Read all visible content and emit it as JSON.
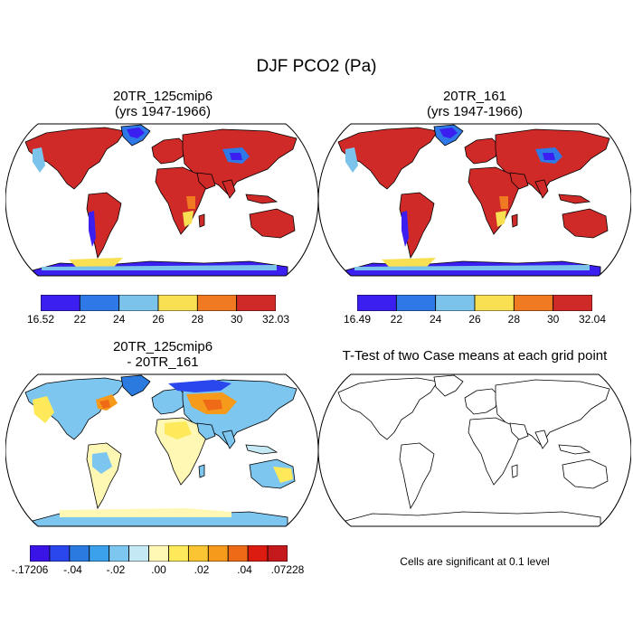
{
  "title": "DJF PCO2 (Pa)",
  "panels": [
    {
      "id": "case1",
      "title_line1": "20TR_125cmip6",
      "title_line2": "(yrs 1947-1966)",
      "colorbar": {
        "colors": [
          "#3b1ff0",
          "#2e78e8",
          "#7cc3ec",
          "#f8e052",
          "#f07a22",
          "#d02a28"
        ],
        "labels": [
          "16.52",
          "22",
          "24",
          "26",
          "28",
          "30",
          "32.03"
        ]
      }
    },
    {
      "id": "case2",
      "title_line1": "20TR_161",
      "title_line2": "(yrs 1947-1966)",
      "colorbar": {
        "colors": [
          "#3b1ff0",
          "#2e78e8",
          "#7cc3ec",
          "#f8e052",
          "#f07a22",
          "#d02a28"
        ],
        "labels": [
          "16.49",
          "22",
          "24",
          "26",
          "28",
          "30",
          "32.04"
        ]
      }
    },
    {
      "id": "difference",
      "title_line1": "20TR_125cmip6",
      "title_line2": "- 20TR_161",
      "colorbar": {
        "colors": [
          "#3a14e6",
          "#2a47ee",
          "#2a7ae0",
          "#3aa1ea",
          "#7cc6f0",
          "#c4e8f4",
          "#fff8b4",
          "#fde95a",
          "#fbc432",
          "#f69a1c",
          "#ee6a16",
          "#dc1c10",
          "#c41a1e"
        ],
        "labels": [
          "-.17206",
          "-.04",
          "-.02",
          ".00",
          ".02",
          ".04",
          ".07228"
        ]
      }
    },
    {
      "id": "ttest",
      "title_line1": "T-Test of two Case means at each grid point",
      "note": "Cells are significant at 0.1 level"
    }
  ]
}
